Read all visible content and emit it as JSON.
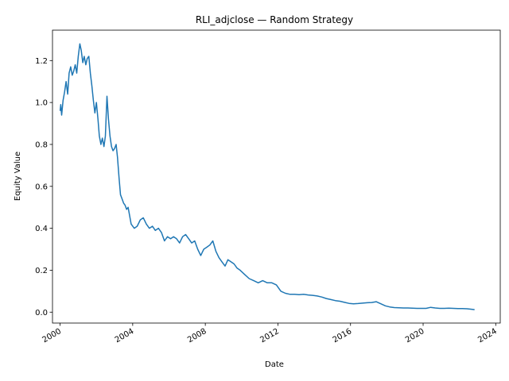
{
  "chart_data": {
    "type": "line",
    "title": "RLI_adjclose — Random Strategy",
    "xlabel": "Date",
    "ylabel": "Equity Value",
    "xlim": [
      "1999-08-01",
      "2024-04-01"
    ],
    "ylim": [
      -0.052,
      1.345
    ],
    "grid": false,
    "x_ticks": [
      {
        "date": "2000-01-01",
        "label": "2000"
      },
      {
        "date": "2004-01-01",
        "label": "2004"
      },
      {
        "date": "2008-01-01",
        "label": "2008"
      },
      {
        "date": "2012-01-01",
        "label": "2012"
      },
      {
        "date": "2016-01-01",
        "label": "2016"
      },
      {
        "date": "2020-01-01",
        "label": "2020"
      },
      {
        "date": "2024-01-01",
        "label": "2024"
      }
    ],
    "y_ticks": [
      {
        "value": 0.0,
        "label": "0.0"
      },
      {
        "value": 0.2,
        "label": "0.2"
      },
      {
        "value": 0.4,
        "label": "0.4"
      },
      {
        "value": 0.6,
        "label": "0.6"
      },
      {
        "value": 0.8,
        "label": "0.8"
      },
      {
        "value": 1.0,
        "label": "1.0"
      },
      {
        "value": 1.2,
        "label": "1.2"
      }
    ],
    "series": [
      {
        "color": "#1f77b4",
        "x": [
          "2000-01-01",
          "2000-01-15",
          "2000-02-01",
          "2000-03-01",
          "2000-04-01",
          "2000-05-01",
          "2000-06-01",
          "2000-07-01",
          "2000-08-01",
          "2000-09-01",
          "2000-10-01",
          "2000-11-01",
          "2000-12-01",
          "2001-01-01",
          "2001-02-01",
          "2001-03-01",
          "2001-04-01",
          "2001-05-01",
          "2001-06-01",
          "2001-07-01",
          "2001-08-01",
          "2001-09-01",
          "2001-10-01",
          "2001-11-01",
          "2001-12-01",
          "2002-01-01",
          "2002-02-01",
          "2002-03-01",
          "2002-04-01",
          "2002-05-01",
          "2002-06-01",
          "2002-07-01",
          "2002-08-01",
          "2002-09-01",
          "2002-10-01",
          "2002-11-01",
          "2002-12-01",
          "2003-01-01",
          "2003-02-01",
          "2003-03-01",
          "2003-04-01",
          "2003-05-01",
          "2003-06-01",
          "2003-07-01",
          "2003-08-01",
          "2003-09-01",
          "2003-10-01",
          "2003-11-01",
          "2003-12-01",
          "2004-02-01",
          "2004-04-01",
          "2004-06-01",
          "2004-08-01",
          "2004-10-01",
          "2004-12-01",
          "2005-02-01",
          "2005-04-01",
          "2005-06-01",
          "2005-08-01",
          "2005-10-01",
          "2005-12-01",
          "2006-02-01",
          "2006-04-01",
          "2006-06-01",
          "2006-08-01",
          "2006-10-01",
          "2006-12-01",
          "2007-02-01",
          "2007-04-01",
          "2007-06-01",
          "2007-08-01",
          "2007-10-01",
          "2007-12-01",
          "2008-02-01",
          "2008-04-01",
          "2008-06-01",
          "2008-08-01",
          "2008-10-01",
          "2008-12-01",
          "2009-02-01",
          "2009-04-01",
          "2009-06-01",
          "2009-08-01",
          "2009-10-01",
          "2009-12-01",
          "2010-03-01",
          "2010-06-01",
          "2010-09-01",
          "2010-12-01",
          "2011-03-01",
          "2011-06-01",
          "2011-09-01",
          "2011-12-01",
          "2012-03-01",
          "2012-06-01",
          "2012-09-01",
          "2012-12-01",
          "2013-03-01",
          "2013-06-01",
          "2013-09-01",
          "2013-12-01",
          "2014-03-01",
          "2014-06-01",
          "2014-09-01",
          "2014-12-01",
          "2015-03-01",
          "2015-06-01",
          "2015-09-01",
          "2015-12-01",
          "2016-03-01",
          "2016-06-01",
          "2016-09-01",
          "2016-12-01",
          "2017-03-01",
          "2017-06-01",
          "2017-09-01",
          "2017-12-01",
          "2018-03-01",
          "2018-06-01",
          "2018-09-01",
          "2018-12-01",
          "2019-03-01",
          "2019-06-01",
          "2019-09-01",
          "2019-12-01",
          "2020-03-01",
          "2020-06-01",
          "2020-09-01",
          "2020-12-01",
          "2021-03-01",
          "2021-06-01",
          "2021-09-01",
          "2021-12-01",
          "2022-03-01",
          "2022-06-01",
          "2022-09-01",
          "2022-11-01"
        ],
        "y": [
          0.96,
          0.99,
          0.94,
          1.01,
          1.05,
          1.1,
          1.04,
          1.14,
          1.17,
          1.13,
          1.15,
          1.18,
          1.14,
          1.22,
          1.28,
          1.25,
          1.19,
          1.22,
          1.18,
          1.21,
          1.22,
          1.14,
          1.08,
          1.01,
          0.95,
          1.0,
          0.92,
          0.84,
          0.8,
          0.83,
          0.79,
          0.84,
          1.03,
          0.92,
          0.84,
          0.79,
          0.77,
          0.78,
          0.8,
          0.74,
          0.64,
          0.56,
          0.54,
          0.52,
          0.51,
          0.49,
          0.5,
          0.46,
          0.42,
          0.4,
          0.41,
          0.44,
          0.45,
          0.42,
          0.4,
          0.41,
          0.39,
          0.4,
          0.38,
          0.34,
          0.36,
          0.35,
          0.36,
          0.35,
          0.33,
          0.36,
          0.37,
          0.35,
          0.33,
          0.34,
          0.3,
          0.27,
          0.3,
          0.31,
          0.32,
          0.34,
          0.29,
          0.26,
          0.24,
          0.22,
          0.25,
          0.24,
          0.23,
          0.21,
          0.2,
          0.18,
          0.16,
          0.15,
          0.14,
          0.15,
          0.14,
          0.14,
          0.13,
          0.1,
          0.09,
          0.085,
          0.085,
          0.083,
          0.085,
          0.082,
          0.08,
          0.077,
          0.072,
          0.065,
          0.06,
          0.055,
          0.052,
          0.047,
          0.042,
          0.04,
          0.041,
          0.043,
          0.045,
          0.046,
          0.05,
          0.04,
          0.03,
          0.025,
          0.022,
          0.021,
          0.02,
          0.02,
          0.019,
          0.018,
          0.018,
          0.018,
          0.023,
          0.02,
          0.018,
          0.018,
          0.019,
          0.018,
          0.017,
          0.017,
          0.016,
          0.014,
          0.012
        ]
      }
    ]
  }
}
